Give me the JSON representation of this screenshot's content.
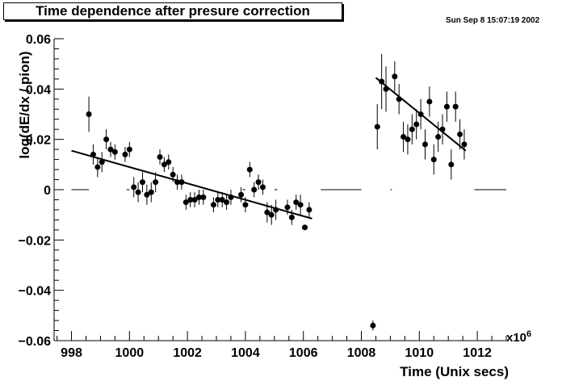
{
  "header": {
    "title": "Time dependence after presure correction",
    "datestamp": "Sun Sep  8 15:07:19 2002"
  },
  "chart_data": {
    "type": "scatter",
    "title": "Time dependence after presure correction",
    "xlabel": "Time (Unix secs)",
    "ylabel": "log(dE/dx / pion)",
    "x_multiplier_label": "x10^6",
    "xlim": [
      997.4,
      1013.0
    ],
    "ylim": [
      -0.06,
      0.06
    ],
    "x_ticks": [
      998,
      1000,
      1002,
      1004,
      1006,
      1008,
      1010,
      1012
    ],
    "x_tick_labels": [
      "998",
      "1000",
      "1002",
      "1004",
      "1006",
      "1008",
      "1010",
      "1012"
    ],
    "y_ticks": [
      -0.06,
      -0.04,
      -0.02,
      0,
      0.02,
      0.04,
      0.06
    ],
    "y_tick_labels": [
      "−0.06",
      "−0.04",
      "−0.02",
      "0",
      "0.02",
      "0.04",
      "0.06"
    ],
    "grid": false,
    "series": [
      {
        "marker": "circle",
        "color": "#000000",
        "points": [
          {
            "x": 998.6,
            "y": 0.03,
            "err": 0.007
          },
          {
            "x": 998.75,
            "y": 0.014,
            "err": 0.004
          },
          {
            "x": 998.9,
            "y": 0.009,
            "err": 0.004
          },
          {
            "x": 999.05,
            "y": 0.011,
            "err": 0.004
          },
          {
            "x": 999.2,
            "y": 0.02,
            "err": 0.004
          },
          {
            "x": 999.35,
            "y": 0.016,
            "err": 0.003
          },
          {
            "x": 999.5,
            "y": 0.015,
            "err": 0.003
          },
          {
            "x": 999.85,
            "y": 0.014,
            "err": 0.003
          },
          {
            "x": 1000.0,
            "y": 0.016,
            "err": 0.003
          },
          {
            "x": 1000.15,
            "y": 0.001,
            "err": 0.004
          },
          {
            "x": 1000.3,
            "y": -0.001,
            "err": 0.004
          },
          {
            "x": 1000.45,
            "y": 0.003,
            "err": 0.004
          },
          {
            "x": 1000.6,
            "y": -0.002,
            "err": 0.004
          },
          {
            "x": 1000.75,
            "y": -0.001,
            "err": 0.004
          },
          {
            "x": 1000.9,
            "y": 0.003,
            "err": 0.004
          },
          {
            "x": 1001.05,
            "y": 0.013,
            "err": 0.003
          },
          {
            "x": 1001.2,
            "y": 0.01,
            "err": 0.003
          },
          {
            "x": 1001.35,
            "y": 0.011,
            "err": 0.003
          },
          {
            "x": 1001.5,
            "y": 0.006,
            "err": 0.003
          },
          {
            "x": 1001.65,
            "y": 0.003,
            "err": 0.003
          },
          {
            "x": 1001.8,
            "y": 0.003,
            "err": 0.003
          },
          {
            "x": 1001.95,
            "y": -0.005,
            "err": 0.003
          },
          {
            "x": 1002.1,
            "y": -0.004,
            "err": 0.003
          },
          {
            "x": 1002.25,
            "y": -0.004,
            "err": 0.003
          },
          {
            "x": 1002.4,
            "y": -0.003,
            "err": 0.003
          },
          {
            "x": 1002.55,
            "y": -0.003,
            "err": 0.003
          },
          {
            "x": 1002.9,
            "y": -0.006,
            "err": 0.003
          },
          {
            "x": 1003.05,
            "y": -0.004,
            "err": 0.003
          },
          {
            "x": 1003.2,
            "y": -0.004,
            "err": 0.003
          },
          {
            "x": 1003.35,
            "y": -0.005,
            "err": 0.003
          },
          {
            "x": 1003.5,
            "y": -0.003,
            "err": 0.003
          },
          {
            "x": 1003.85,
            "y": -0.002,
            "err": 0.003
          },
          {
            "x": 1004.0,
            "y": -0.006,
            "err": 0.003
          },
          {
            "x": 1004.15,
            "y": 0.008,
            "err": 0.003
          },
          {
            "x": 1004.3,
            "y": 0.0,
            "err": 0.003
          },
          {
            "x": 1004.45,
            "y": 0.003,
            "err": 0.003
          },
          {
            "x": 1004.6,
            "y": 0.001,
            "err": 0.003
          },
          {
            "x": 1004.75,
            "y": -0.009,
            "err": 0.004
          },
          {
            "x": 1004.9,
            "y": -0.01,
            "err": 0.004
          },
          {
            "x": 1005.05,
            "y": -0.008,
            "err": 0.004
          },
          {
            "x": 1005.45,
            "y": -0.007,
            "err": 0.003
          },
          {
            "x": 1005.6,
            "y": -0.011,
            "err": 0.003
          },
          {
            "x": 1005.75,
            "y": -0.005,
            "err": 0.003
          },
          {
            "x": 1005.9,
            "y": -0.006,
            "err": 0.004
          },
          {
            "x": 1006.05,
            "y": -0.015,
            "err": 0.001
          },
          {
            "x": 1006.2,
            "y": -0.008,
            "err": 0.003
          },
          {
            "x": 1008.4,
            "y": -0.054,
            "err": 0.002
          },
          {
            "x": 1008.55,
            "y": 0.025,
            "err": 0.009
          },
          {
            "x": 1008.7,
            "y": 0.043,
            "err": 0.011
          },
          {
            "x": 1008.85,
            "y": 0.04,
            "err": 0.009
          },
          {
            "x": 1009.15,
            "y": 0.045,
            "err": 0.006
          },
          {
            "x": 1009.3,
            "y": 0.036,
            "err": 0.006
          },
          {
            "x": 1009.45,
            "y": 0.021,
            "err": 0.006
          },
          {
            "x": 1009.6,
            "y": 0.02,
            "err": 0.006
          },
          {
            "x": 1009.75,
            "y": 0.024,
            "err": 0.006
          },
          {
            "x": 1009.9,
            "y": 0.026,
            "err": 0.006
          },
          {
            "x": 1010.05,
            "y": 0.03,
            "err": 0.006
          },
          {
            "x": 1010.2,
            "y": 0.018,
            "err": 0.006
          },
          {
            "x": 1010.35,
            "y": 0.035,
            "err": 0.006
          },
          {
            "x": 1010.5,
            "y": 0.012,
            "err": 0.006
          },
          {
            "x": 1010.65,
            "y": 0.021,
            "err": 0.006
          },
          {
            "x": 1010.8,
            "y": 0.024,
            "err": 0.006
          },
          {
            "x": 1010.95,
            "y": 0.033,
            "err": 0.006
          },
          {
            "x": 1011.1,
            "y": 0.01,
            "err": 0.006
          },
          {
            "x": 1011.25,
            "y": 0.033,
            "err": 0.006
          },
          {
            "x": 1011.4,
            "y": 0.022,
            "err": 0.006
          },
          {
            "x": 1011.55,
            "y": 0.018,
            "err": 0.006
          }
        ]
      }
    ],
    "fit_lines": [
      {
        "x": [
          998.0,
          1006.3
        ],
        "y": [
          0.0155,
          -0.0115
        ]
      },
      {
        "x": [
          1008.5,
          1011.6
        ],
        "y": [
          0.0445,
          0.0155
        ]
      }
    ],
    "zero_line": {
      "y": 0,
      "x_segments": [
        [
          998.0,
          998.6
        ],
        [
          999.9,
          1000.0
        ],
        [
          1003.9,
          1004.0
        ],
        [
          1005.0,
          1005.1
        ],
        [
          1006.6,
          1008.0
        ],
        [
          1009.0,
          1009.05
        ],
        [
          1011.9,
          1013.0
        ]
      ]
    }
  }
}
